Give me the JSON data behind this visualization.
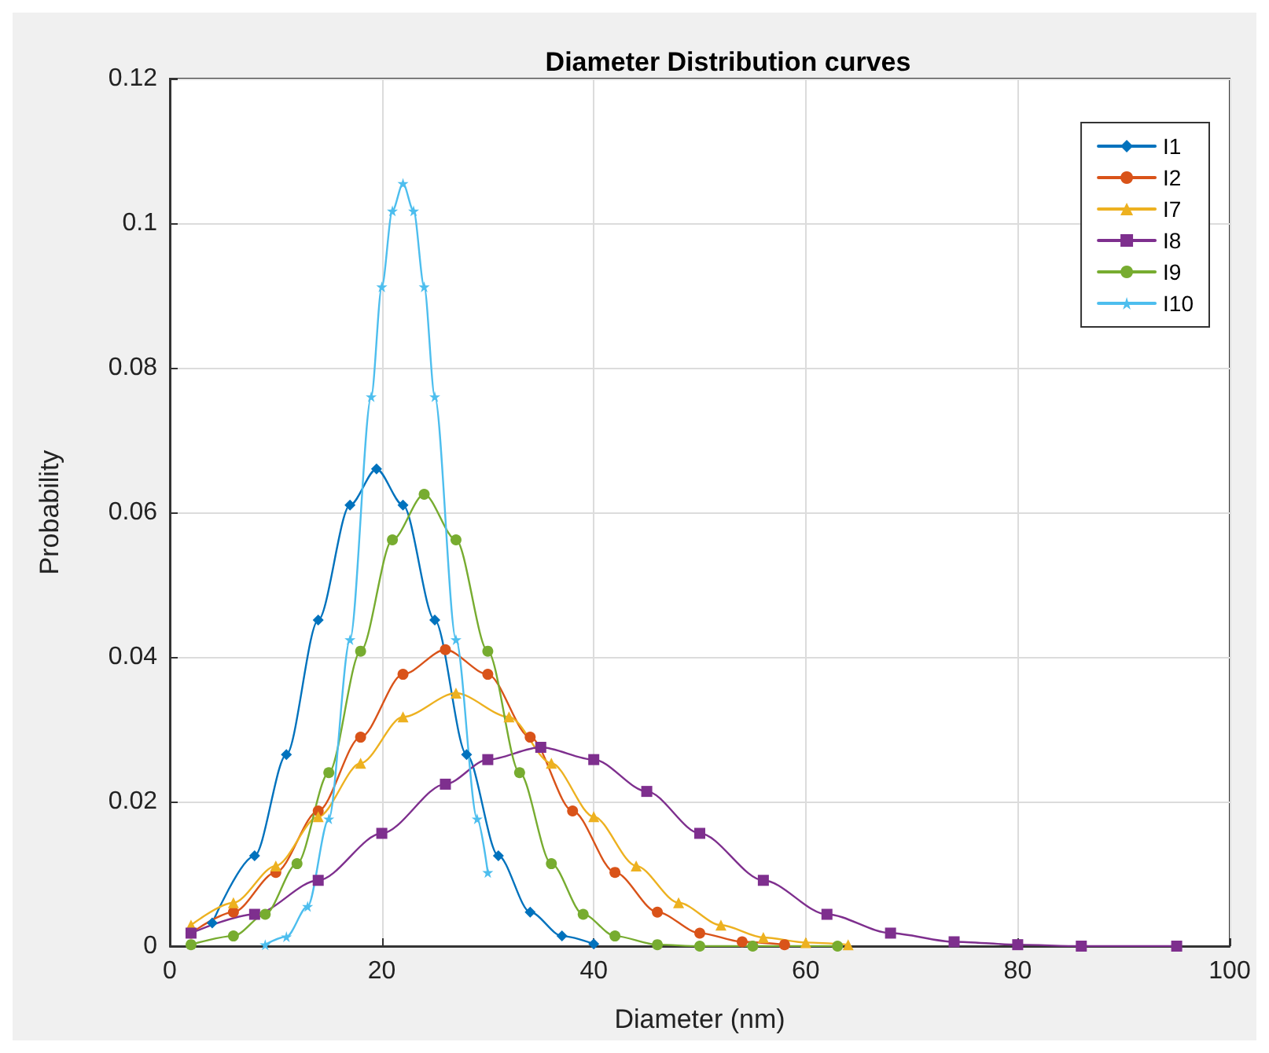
{
  "chart_data": {
    "type": "line",
    "title": "Diameter Distribution curves",
    "xlabel": "Diameter (nm)",
    "ylabel": "Probability",
    "xlim": [
      0,
      100
    ],
    "xticks": [
      0,
      20,
      40,
      60,
      80,
      100
    ],
    "ylim": [
      0,
      0.12
    ],
    "yticks": [
      0,
      0.02,
      0.04,
      0.06,
      0.08,
      0.1,
      0.12
    ],
    "grid": true,
    "legend": "top right",
    "series": [
      {
        "name": "I1",
        "color": "#0072bd",
        "marker": "diamond",
        "x": [
          4,
          8,
          11,
          14,
          17,
          19.5,
          22,
          25,
          28,
          31,
          34,
          37,
          40
        ],
        "values": [
          0.0032,
          0.0125,
          0.0265,
          0.0451,
          0.061,
          0.066,
          0.061,
          0.0451,
          0.0265,
          0.0125,
          0.0047,
          0.0014,
          0.0003
        ]
      },
      {
        "name": "I2",
        "color": "#d95319",
        "marker": "circle",
        "x": [
          2,
          6,
          10,
          14,
          18,
          22,
          26,
          30,
          34,
          38,
          42,
          46,
          50,
          54,
          58
        ],
        "values": [
          0.0018,
          0.0047,
          0.0102,
          0.0187,
          0.0289,
          0.0376,
          0.041,
          0.0376,
          0.0289,
          0.0187,
          0.0102,
          0.0047,
          0.0018,
          0.0006,
          0.0002
        ]
      },
      {
        "name": "I7",
        "color": "#edb120",
        "marker": "triangle",
        "x": [
          2,
          6,
          10,
          14,
          18,
          22,
          27,
          32,
          36,
          40,
          44,
          48,
          52,
          56,
          60,
          64
        ],
        "values": [
          0.0029,
          0.006,
          0.0111,
          0.0179,
          0.0253,
          0.0317,
          0.035,
          0.0317,
          0.0253,
          0.0179,
          0.0111,
          0.006,
          0.0029,
          0.0012,
          0.0005,
          0.0002
        ]
      },
      {
        "name": "I8",
        "color": "#7e2f8e",
        "marker": "square",
        "x": [
          2,
          8,
          14,
          20,
          26,
          30,
          35,
          40,
          45,
          50,
          56,
          62,
          68,
          74,
          80,
          86,
          95
        ],
        "values": [
          0.0018,
          0.0044,
          0.0091,
          0.0156,
          0.0224,
          0.0258,
          0.0275,
          0.0258,
          0.0214,
          0.0156,
          0.0091,
          0.0044,
          0.0018,
          0.0006,
          0.0002,
          0,
          0
        ]
      },
      {
        "name": "I9",
        "color": "#77ac30",
        "marker": "circle",
        "x": [
          2,
          6,
          9,
          12,
          15,
          18,
          21,
          24,
          27,
          30,
          33,
          36,
          39,
          42,
          46,
          50,
          55,
          63
        ],
        "values": [
          0.0002,
          0.0014,
          0.0044,
          0.0114,
          0.024,
          0.0408,
          0.0562,
          0.0625,
          0.0562,
          0.0408,
          0.024,
          0.0114,
          0.0044,
          0.0014,
          0.0002,
          0,
          0,
          0
        ]
      },
      {
        "name": "I10",
        "color": "#4dbeee",
        "marker": "star",
        "x": [
          9,
          11,
          13,
          15,
          17,
          19,
          20,
          21,
          22,
          23,
          24,
          25,
          27,
          29,
          30
        ],
        "values": [
          0.0002,
          0.0013,
          0.0055,
          0.0176,
          0.0424,
          0.076,
          0.0912,
          0.1017,
          0.1055,
          0.1017,
          0.0912,
          0.076,
          0.0424,
          0.0176,
          0.0102
        ]
      }
    ]
  }
}
